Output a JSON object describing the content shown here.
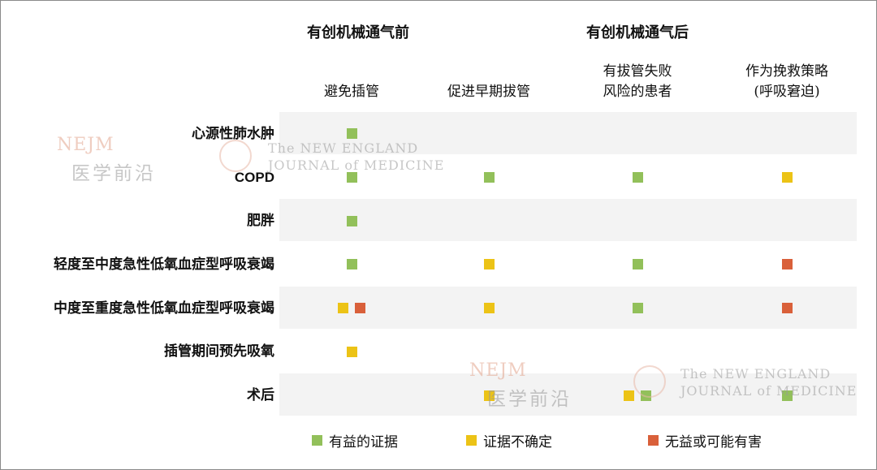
{
  "chart_data": {
    "type": "table",
    "column_groups": [
      {
        "label": "有创机械通气前",
        "columns": [
          0
        ]
      },
      {
        "label": "有创机械通气后",
        "columns": [
          1,
          2,
          3
        ]
      }
    ],
    "columns": [
      {
        "key": "avoid",
        "lines": [
          "避免插管"
        ]
      },
      {
        "key": "early",
        "lines": [
          "促进早期拔管"
        ]
      },
      {
        "key": "risk",
        "lines": [
          "有拔管失败",
          "风险的患者"
        ]
      },
      {
        "key": "rescue",
        "lines": [
          "作为挽救策略",
          "(呼吸窘迫)"
        ]
      }
    ],
    "rows": [
      {
        "label": "心源性肺水肿",
        "cells": [
          [
            "beneficial"
          ],
          [],
          [],
          []
        ]
      },
      {
        "label": "COPD",
        "cells": [
          [
            "beneficial"
          ],
          [
            "beneficial"
          ],
          [
            "beneficial"
          ],
          [
            "uncertain"
          ]
        ]
      },
      {
        "label": "肥胖",
        "cells": [
          [
            "beneficial"
          ],
          [],
          [],
          []
        ]
      },
      {
        "label": "轻度至中度急性低氧血症型呼吸衰竭",
        "cells": [
          [
            "beneficial"
          ],
          [
            "uncertain"
          ],
          [
            "beneficial"
          ],
          [
            "harmful"
          ]
        ]
      },
      {
        "label": "中度至重度急性低氧血症型呼吸衰竭",
        "cells": [
          [
            "uncertain",
            "harmful"
          ],
          [
            "uncertain"
          ],
          [
            "beneficial"
          ],
          [
            "harmful"
          ]
        ]
      },
      {
        "label": "插管期间预先吸氧",
        "cells": [
          [
            "uncertain"
          ],
          [],
          [],
          []
        ]
      },
      {
        "label": "术后",
        "cells": [
          [],
          [
            "uncertain"
          ],
          [
            "uncertain",
            "beneficial"
          ],
          [
            "beneficial"
          ]
        ]
      }
    ],
    "legend": [
      {
        "key": "beneficial",
        "label": "有益的证据",
        "color": "#92c05a"
      },
      {
        "key": "uncertain",
        "label": "证据不确定",
        "color": "#ecc316"
      },
      {
        "key": "harmful",
        "label": "无益或可能有害",
        "color": "#d9603a"
      }
    ]
  },
  "watermarks": {
    "nejm": "NEJM",
    "brand_zh": "医学前沿",
    "journal_line1": "The NEW ENGLAND",
    "journal_line2": "JOURNAL of MEDICINE"
  }
}
